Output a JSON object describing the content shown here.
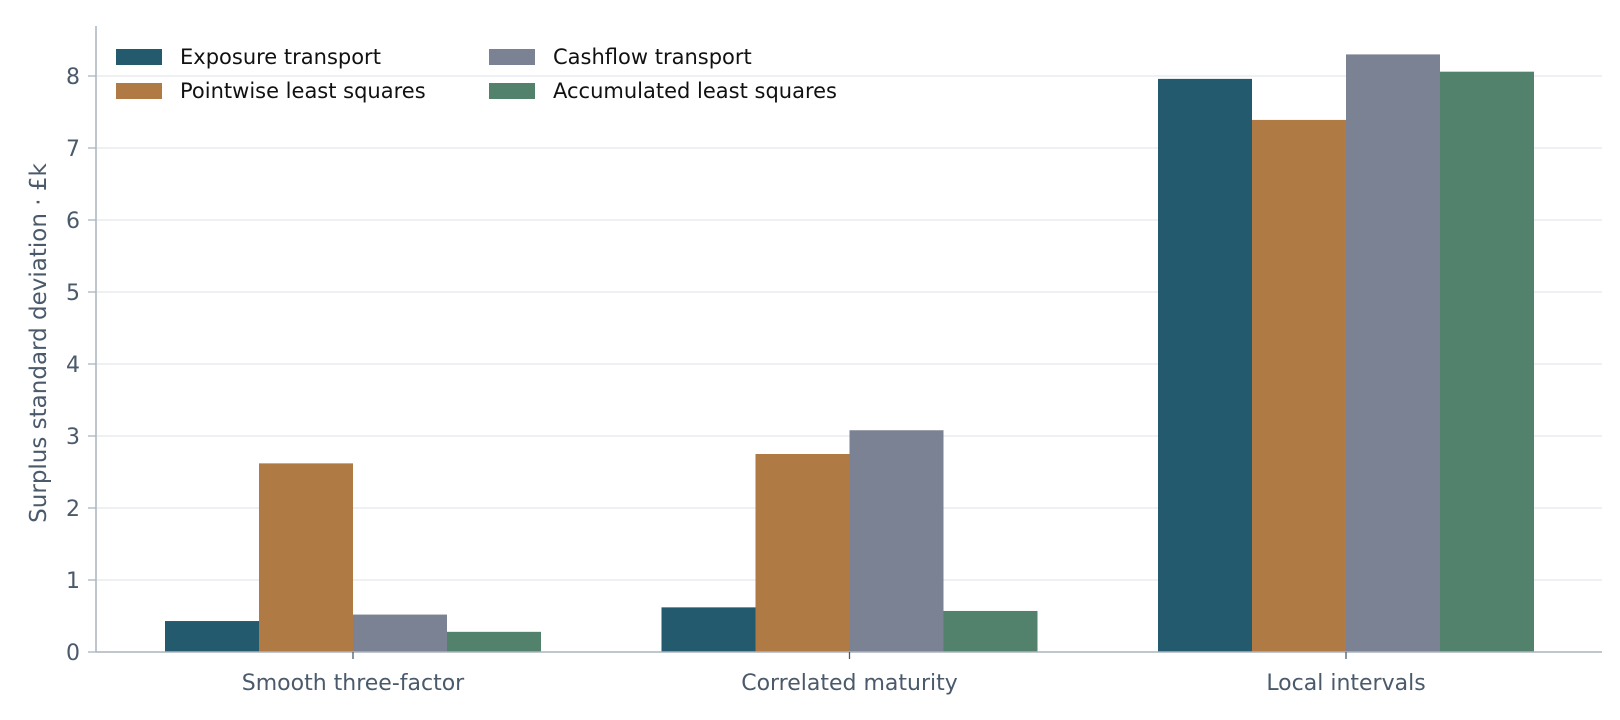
{
  "chart_data": {
    "type": "bar",
    "title": "",
    "xlabel": "",
    "ylabel": "Surplus standard deviation · £k",
    "ylim": [
      0,
      8.75
    ],
    "yticks": [
      0,
      1,
      2,
      3,
      4,
      5,
      6,
      7,
      8
    ],
    "grid": "horizontal",
    "legend_position": "top-left",
    "categories": [
      "Smooth three-factor",
      "Correlated maturity",
      "Local intervals"
    ],
    "series": [
      {
        "name": "Exposure transport",
        "color": "#235a6e",
        "values": [
          0.43,
          0.62,
          7.96
        ]
      },
      {
        "name": "Pointwise least squares",
        "color": "#b07a44",
        "values": [
          2.62,
          2.75,
          7.39
        ]
      },
      {
        "name": "Cashflow transport",
        "color": "#7a8293",
        "values": [
          0.52,
          3.08,
          8.3
        ]
      },
      {
        "name": "Accumulated least squares",
        "color": "#53826c",
        "values": [
          0.28,
          0.57,
          8.06
        ]
      }
    ],
    "colors": {
      "axis": "#aab4be",
      "grid": "#e4e8ec",
      "text": "#4a5a6b"
    }
  }
}
